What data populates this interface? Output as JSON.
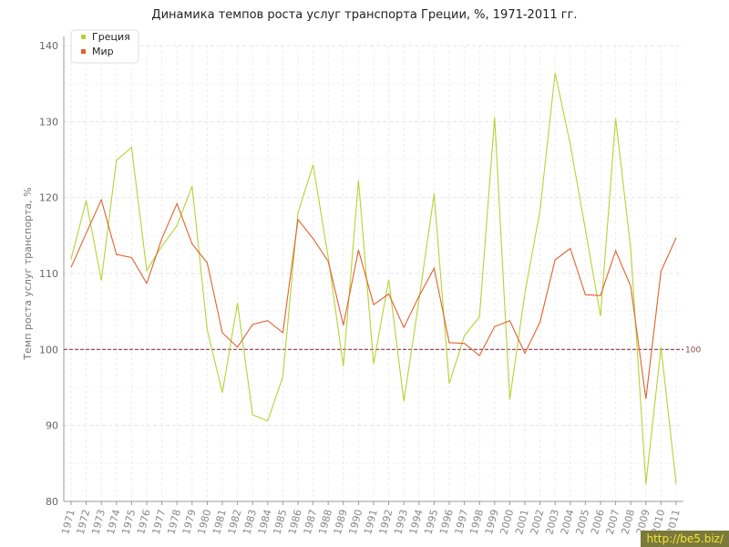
{
  "chart_data": {
    "type": "line",
    "title": "Динамика темпов роста услуг транспорта Греции, %, 1971-2011 гг.",
    "xlabel": "",
    "ylabel": "Темп роста услуг транспорта, %",
    "ylim": [
      80,
      140
    ],
    "yticks": [
      "80",
      "90",
      "100",
      "110",
      "120",
      "130",
      "140"
    ],
    "grid": true,
    "legend_position": "top-left",
    "x": [
      "1971",
      "1972",
      "1973",
      "1974",
      "1975",
      "1976",
      "1977",
      "1978",
      "1979",
      "1980",
      "1981",
      "1982",
      "1983",
      "1984",
      "1985",
      "1986",
      "1987",
      "1988",
      "1989",
      "1990",
      "1991",
      "1992",
      "1993",
      "1994",
      "1995",
      "1996",
      "1997",
      "1998",
      "1999",
      "2000",
      "2001",
      "2002",
      "2003",
      "2004",
      "2005",
      "2006",
      "2007",
      "2008",
      "2009",
      "2010",
      "2011"
    ],
    "series": [
      {
        "name": "Греция",
        "color": "#b5d335",
        "values": [
          111.9,
          119.6,
          109.1,
          124.9,
          126.6,
          110.4,
          113.6,
          116.3,
          121.5,
          102.6,
          94.3,
          106.1,
          91.4,
          90.6,
          96.4,
          118.0,
          124.3,
          112.1,
          97.8,
          122.3,
          98.1,
          109.2,
          93.2,
          106.5,
          120.5,
          95.5,
          101.8,
          104.3,
          130.6,
          93.4,
          107.4,
          118.3,
          136.4,
          127.0,
          115.8,
          104.4,
          130.4,
          113.2,
          82.3,
          100.3,
          82.3
        ]
      },
      {
        "name": "Мир",
        "color": "#e0622e",
        "values": [
          110.8,
          115.3,
          119.7,
          112.5,
          112.1,
          108.7,
          114.6,
          119.2,
          113.9,
          111.4,
          102.2,
          100.3,
          103.3,
          103.8,
          102.2,
          117.1,
          114.6,
          111.6,
          103.2,
          113.1,
          105.9,
          107.3,
          102.9,
          107.0,
          110.7,
          100.9,
          100.8,
          99.2,
          103.0,
          103.8,
          99.5,
          103.6,
          111.8,
          113.3,
          107.2,
          107.1,
          113.0,
          108.3,
          93.5,
          110.3,
          114.7
        ]
      }
    ],
    "reference_line": {
      "value": 100,
      "label": "100",
      "color": "#8b3a4a"
    }
  },
  "watermark": "http://be5.biz/"
}
